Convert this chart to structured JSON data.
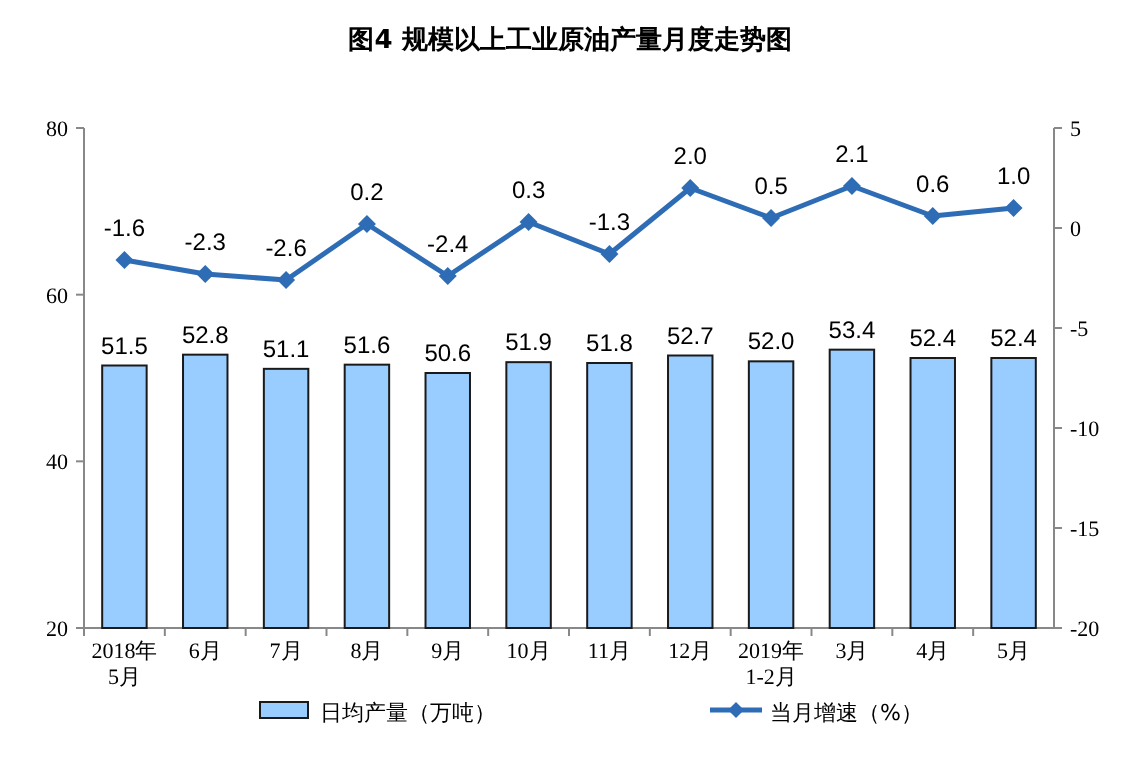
{
  "chart_data": {
    "type": "bar",
    "title": "图4  规模以上工业原油产量月度走势图",
    "categories": [
      "2018年\n5月",
      "6月",
      "7月",
      "8月",
      "9月",
      "10月",
      "11月",
      "12月",
      "2019年\n1-2月",
      "3月",
      "4月",
      "5月"
    ],
    "series": [
      {
        "name": "日均产量（万吨）",
        "color": "#99ccff",
        "values": [
          51.5,
          52.8,
          51.1,
          51.6,
          50.6,
          51.9,
          51.8,
          52.7,
          52.0,
          53.4,
          52.4,
          52.4
        ],
        "value_labels": [
          "51.5",
          "52.8",
          "51.1",
          "51.6",
          "50.6",
          "51.9",
          "51.8",
          "52.7",
          "52.0",
          "53.4",
          "52.4",
          "52.4"
        ]
      },
      {
        "name": "当月增速（%）",
        "type": "line",
        "axis": "y2",
        "color": "#2e6db5",
        "marker": "diamond",
        "values": [
          -1.6,
          -2.3,
          -2.6,
          0.2,
          -2.4,
          0.3,
          -1.3,
          2.0,
          0.5,
          2.1,
          0.6,
          1.0
        ],
        "value_labels": [
          "-1.6",
          "-2.3",
          "-2.6",
          "0.2",
          "-2.4",
          "0.3",
          "-1.3",
          "2.0",
          "0.5",
          "2.1",
          "0.6",
          "1.0"
        ]
      }
    ],
    "ylim": [
      20,
      80
    ],
    "yticks": [
      20,
      40,
      60,
      80
    ],
    "y2lim": [
      -20,
      5
    ],
    "y2ticks": [
      -20,
      -15,
      -10,
      -5,
      0,
      5
    ],
    "grid": false,
    "legend": "bottom"
  }
}
